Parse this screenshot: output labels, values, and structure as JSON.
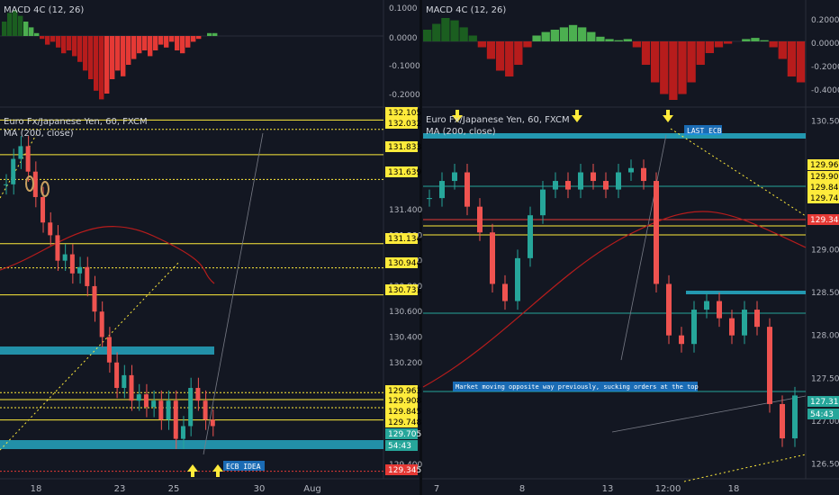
{
  "left": {
    "macd_title": "MACD 4C (12, 26)",
    "macd_ticks": [
      "0.1000",
      "0.0000",
      "-0.1000",
      "-0.2000"
    ],
    "chart_title": "Euro Fx/Japanese Yen, 60, FXCM",
    "ma_label": "MA (200, close)",
    "price_ticks": [
      "131.400",
      "131.200",
      "131.000",
      "130.800",
      "130.600",
      "130.400",
      "130.200",
      "129.400"
    ],
    "level_tags": [
      {
        "text": "132.105",
        "color": "#ffeb3b"
      },
      {
        "text": "132.032",
        "color": "#ffeb3b"
      },
      {
        "text": "131.833",
        "color": "#ffeb3b"
      },
      {
        "text": "131.639",
        "color": "#ffeb3b"
      },
      {
        "text": "131.134",
        "color": "#ffeb3b"
      },
      {
        "text": "130.944",
        "color": "#ffeb3b"
      },
      {
        "text": "130.731",
        "color": "#ffeb3b"
      },
      {
        "text": "129.963",
        "color": "#ffeb3b"
      },
      {
        "text": "129.908",
        "color": "#ffeb3b"
      },
      {
        "text": "129.845",
        "color": "#ffeb3b"
      },
      {
        "text": "129.748",
        "color": "#ffeb3b"
      },
      {
        "text": "129.705",
        "color": "#26a69a"
      },
      {
        "text": "54:43",
        "color": "#26a69a"
      },
      {
        "text": "129.345",
        "color": "#e53935"
      }
    ],
    "x_ticks": [
      "18",
      "23",
      "25",
      "30",
      "Aug"
    ],
    "annotation": "ECB IDEA"
  },
  "right": {
    "macd_title": "MACD 4C (12, 26)",
    "macd_ticks": [
      "0.2000",
      "0.0000",
      "-0.2000",
      "-0.4000"
    ],
    "chart_title": "Euro Fx/Japanese Yen, 60, FXCM",
    "ma_label": "MA (200, close)",
    "price_ticks": [
      "130.500",
      "129.000",
      "128.500",
      "128.000",
      "127.500",
      "127.000",
      "126.500"
    ],
    "level_tags": [
      {
        "text": "129.963",
        "color": "#ffeb3b"
      },
      {
        "text": "129.908",
        "color": "#ffeb3b"
      },
      {
        "text": "129.845",
        "color": "#ffeb3b"
      },
      {
        "text": "129.748",
        "color": "#ffeb3b"
      },
      {
        "text": "129.345",
        "color": "#e53935"
      },
      {
        "text": "127.315",
        "color": "#26a69a"
      },
      {
        "text": "54:43",
        "color": "#26a69a"
      }
    ],
    "x_ticks": [
      "7",
      "8",
      "13",
      "12:00",
      "18"
    ],
    "annotation_top": "LAST ECB",
    "annotation_mid": "Market moving opposite way previously, sucking orders at the top"
  },
  "chart_data": [
    {
      "type": "candlestick",
      "title": "Euro Fx/Japanese Yen, 60, FXCM",
      "indicator": "MA (200, close)",
      "ylim": [
        129.3,
        132.2
      ],
      "x_tick_labels": [
        "18",
        "23",
        "25",
        "30",
        "Aug"
      ],
      "horizontal_levels": [
        132.105,
        132.032,
        131.833,
        131.639,
        131.134,
        130.944,
        130.731,
        129.963,
        129.908,
        129.845,
        129.748,
        129.345
      ],
      "last_price": 129.705,
      "close_path": [
        131.6,
        131.8,
        131.9,
        131.7,
        131.5,
        131.3,
        131.2,
        131.0,
        131.05,
        130.9,
        130.95,
        130.8,
        130.6,
        130.4,
        130.2,
        130.0,
        130.1,
        129.9,
        129.95,
        129.85,
        129.9,
        129.75,
        129.9,
        129.6,
        129.7,
        130.0,
        129.9,
        129.75,
        129.7
      ]
    },
    {
      "type": "candlestick",
      "title": "Euro Fx/Japanese Yen, 60, FXCM",
      "indicator": "MA (200, close)",
      "ylim": [
        126.5,
        130.5
      ],
      "x_tick_labels": [
        "7",
        "8",
        "13",
        "12:00",
        "18"
      ],
      "horizontal_levels": [
        129.963,
        129.908,
        129.845,
        129.748,
        129.345
      ],
      "last_price": 127.315,
      "close_path": [
        129.6,
        129.8,
        129.9,
        129.5,
        129.2,
        128.6,
        128.4,
        128.9,
        129.4,
        129.7,
        129.8,
        129.7,
        129.9,
        129.8,
        129.7,
        129.9,
        129.95,
        129.8,
        128.6,
        128.0,
        127.9,
        128.3,
        128.4,
        128.2,
        128.0,
        128.3,
        128.1,
        127.2,
        126.8,
        127.3
      ]
    }
  ]
}
